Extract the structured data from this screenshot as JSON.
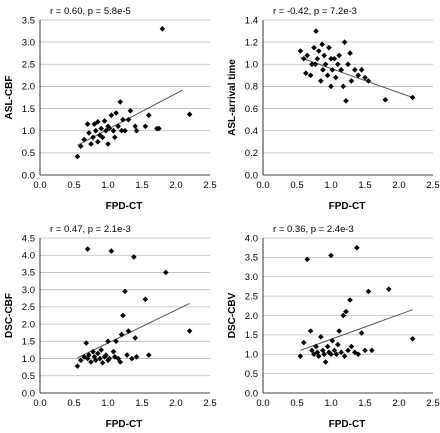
{
  "chart_data": [
    {
      "type": "scatter",
      "annotation": "r = 0.60, p = 5.8e-5",
      "xlabel": "FPD-CT",
      "ylabel": "ASL-CBF",
      "xlim": [
        0.0,
        2.5
      ],
      "ylim": [
        0.0,
        3.5
      ],
      "xticks": [
        "0.0",
        "0.5",
        "1.0",
        "1.5",
        "2.0",
        "2.5"
      ],
      "yticks": [
        "0.0",
        "0.5",
        "1.0",
        "1.5",
        "2.0",
        "2.5",
        "3.0",
        "3.5"
      ],
      "grid": "horizontal",
      "trendline": [
        [
          0.55,
          0.67
        ],
        [
          2.1,
          1.92
        ]
      ],
      "points": [
        [
          0.55,
          0.42
        ],
        [
          0.6,
          0.65
        ],
        [
          0.65,
          0.8
        ],
        [
          0.7,
          1.15
        ],
        [
          0.72,
          0.95
        ],
        [
          0.75,
          0.7
        ],
        [
          0.78,
          0.85
        ],
        [
          0.8,
          1.15
        ],
        [
          0.82,
          1.0
        ],
        [
          0.85,
          1.2
        ],
        [
          0.85,
          0.75
        ],
        [
          0.88,
          0.9
        ],
        [
          0.9,
          1.05
        ],
        [
          0.92,
          0.85
        ],
        [
          0.95,
          1.22
        ],
        [
          0.97,
          1.0
        ],
        [
          1.0,
          1.1
        ],
        [
          1.0,
          0.7
        ],
        [
          1.02,
          1.05
        ],
        [
          1.05,
          1.35
        ],
        [
          1.08,
          1.0
        ],
        [
          1.1,
          0.85
        ],
        [
          1.12,
          1.4
        ],
        [
          1.15,
          1.1
        ],
        [
          1.18,
          1.65
        ],
        [
          1.2,
          1.0
        ],
        [
          1.22,
          1.25
        ],
        [
          1.25,
          1.0
        ],
        [
          1.3,
          1.25
        ],
        [
          1.33,
          1.45
        ],
        [
          1.4,
          1.1
        ],
        [
          1.42,
          1.0
        ],
        [
          1.55,
          1.1
        ],
        [
          1.6,
          1.35
        ],
        [
          1.72,
          1.05
        ],
        [
          1.75,
          1.05
        ],
        [
          1.8,
          3.3
        ],
        [
          2.2,
          1.37
        ]
      ]
    },
    {
      "type": "scatter",
      "annotation": "r = -0.42, p = 7.2e-3",
      "xlabel": "FPD-CT",
      "ylabel": "ASL-arrival time",
      "xlim": [
        0.0,
        2.5
      ],
      "ylim": [
        0.0,
        1.4
      ],
      "xticks": [
        "0.0",
        "0.5",
        "1.0",
        "1.5",
        "2.0",
        "2.5"
      ],
      "yticks": [
        "0.0",
        "0.2",
        "0.4",
        "0.6",
        "0.8",
        "1.0",
        "1.2",
        "1.4"
      ],
      "grid": "horizontal",
      "trendline": [
        [
          0.55,
          1.06
        ],
        [
          2.2,
          0.7
        ]
      ],
      "points": [
        [
          0.55,
          1.12
        ],
        [
          0.6,
          1.05
        ],
        [
          0.63,
          0.92
        ],
        [
          0.65,
          1.08
        ],
        [
          0.7,
          0.9
        ],
        [
          0.72,
          1.0
        ],
        [
          0.75,
          1.15
        ],
        [
          0.77,
          1.0
        ],
        [
          0.78,
          1.3
        ],
        [
          0.8,
          1.05
        ],
        [
          0.82,
          1.12
        ],
        [
          0.85,
          0.85
        ],
        [
          0.87,
          1.18
        ],
        [
          0.88,
          0.95
        ],
        [
          0.9,
          1.08
        ],
        [
          0.92,
          1.0
        ],
        [
          0.95,
          0.9
        ],
        [
          0.97,
          1.15
        ],
        [
          1.0,
          0.8
        ],
        [
          1.0,
          1.05
        ],
        [
          1.02,
          0.95
        ],
        [
          1.05,
          1.05
        ],
        [
          1.07,
          0.88
        ],
        [
          1.1,
          1.0
        ],
        [
          1.12,
          1.08
        ],
        [
          1.15,
          0.95
        ],
        [
          1.18,
          0.8
        ],
        [
          1.2,
          1.2
        ],
        [
          1.22,
          0.67
        ],
        [
          1.25,
          1.0
        ],
        [
          1.28,
          1.1
        ],
        [
          1.3,
          0.85
        ],
        [
          1.35,
          0.95
        ],
        [
          1.4,
          0.9
        ],
        [
          1.45,
          0.95
        ],
        [
          1.5,
          0.88
        ],
        [
          1.55,
          0.85
        ],
        [
          1.8,
          0.68
        ],
        [
          2.2,
          0.7
        ]
      ]
    },
    {
      "type": "scatter",
      "annotation": "r = 0.47, p = 2.1e-3",
      "xlabel": "FPD-CT",
      "ylabel": "DSC-CBF",
      "xlim": [
        0.0,
        2.5
      ],
      "ylim": [
        0.0,
        4.5
      ],
      "xticks": [
        "0.0",
        "0.5",
        "1.0",
        "1.5",
        "2.0",
        "2.5"
      ],
      "yticks": [
        "0.0",
        "0.5",
        "1.0",
        "1.5",
        "2.0",
        "2.5",
        "3.0",
        "3.5",
        "4.0",
        "4.5"
      ],
      "grid": "horizontal",
      "trendline": [
        [
          0.55,
          1.02
        ],
        [
          2.2,
          2.6
        ]
      ],
      "points": [
        [
          0.55,
          0.78
        ],
        [
          0.6,
          0.95
        ],
        [
          0.65,
          1.05
        ],
        [
          0.68,
          1.45
        ],
        [
          0.7,
          1.0
        ],
        [
          0.7,
          4.18
        ],
        [
          0.72,
          1.1
        ],
        [
          0.75,
          0.9
        ],
        [
          0.78,
          1.2
        ],
        [
          0.8,
          1.05
        ],
        [
          0.82,
          0.95
        ],
        [
          0.85,
          1.15
        ],
        [
          0.88,
          1.0
        ],
        [
          0.9,
          1.25
        ],
        [
          0.92,
          0.88
        ],
        [
          0.95,
          1.05
        ],
        [
          0.97,
          1.1
        ],
        [
          1.0,
          1.5
        ],
        [
          1.0,
          0.95
        ],
        [
          1.02,
          1.0
        ],
        [
          1.05,
          4.12
        ],
        [
          1.08,
          1.2
        ],
        [
          1.1,
          1.05
        ],
        [
          1.12,
          1.5
        ],
        [
          1.15,
          1.0
        ],
        [
          1.18,
          0.9
        ],
        [
          1.2,
          1.7
        ],
        [
          1.22,
          2.25
        ],
        [
          1.25,
          2.95
        ],
        [
          1.28,
          1.1
        ],
        [
          1.3,
          1.8
        ],
        [
          1.35,
          1.0
        ],
        [
          1.38,
          3.95
        ],
        [
          1.4,
          1.6
        ],
        [
          1.42,
          1.05
        ],
        [
          1.55,
          2.72
        ],
        [
          1.6,
          1.1
        ],
        [
          1.85,
          3.5
        ],
        [
          2.2,
          1.8
        ]
      ]
    },
    {
      "type": "scatter",
      "annotation": "r = 0.36, p = 2.4e-3",
      "xlabel": "FPD-CT",
      "ylabel": "DSC-CBV",
      "xlim": [
        0.0,
        2.5
      ],
      "ylim": [
        0.0,
        4.0
      ],
      "xticks": [
        "0.0",
        "0.5",
        "1.0",
        "1.5",
        "2.0",
        "2.5"
      ],
      "yticks": [
        "0.0",
        "0.5",
        "1.0",
        "1.5",
        "2.0",
        "2.5",
        "3.0",
        "3.5",
        "4.0"
      ],
      "grid": "horizontal",
      "trendline": [
        [
          0.55,
          1.1
        ],
        [
          2.2,
          2.15
        ]
      ],
      "points": [
        [
          0.55,
          0.95
        ],
        [
          0.6,
          1.3
        ],
        [
          0.65,
          3.45
        ],
        [
          0.7,
          1.6
        ],
        [
          0.72,
          1.1
        ],
        [
          0.75,
          1.0
        ],
        [
          0.78,
          1.2
        ],
        [
          0.8,
          1.05
        ],
        [
          0.82,
          0.95
        ],
        [
          0.85,
          1.45
        ],
        [
          0.88,
          1.1
        ],
        [
          0.9,
          1.0
        ],
        [
          0.92,
          0.8
        ],
        [
          0.95,
          1.2
        ],
        [
          0.97,
          1.05
        ],
        [
          1.0,
          1.0
        ],
        [
          1.0,
          3.55
        ],
        [
          1.02,
          1.35
        ],
        [
          1.05,
          1.1
        ],
        [
          1.08,
          1.0
        ],
        [
          1.1,
          1.25
        ],
        [
          1.12,
          1.6
        ],
        [
          1.15,
          1.05
        ],
        [
          1.18,
          2.0
        ],
        [
          1.2,
          0.95
        ],
        [
          1.22,
          2.1
        ],
        [
          1.25,
          1.1
        ],
        [
          1.28,
          2.4
        ],
        [
          1.3,
          1.2
        ],
        [
          1.35,
          1.05
        ],
        [
          1.38,
          3.75
        ],
        [
          1.4,
          1.0
        ],
        [
          1.45,
          1.55
        ],
        [
          1.5,
          1.1
        ],
        [
          1.55,
          2.62
        ],
        [
          1.6,
          1.1
        ],
        [
          1.85,
          2.68
        ],
        [
          2.2,
          1.4
        ]
      ]
    }
  ]
}
